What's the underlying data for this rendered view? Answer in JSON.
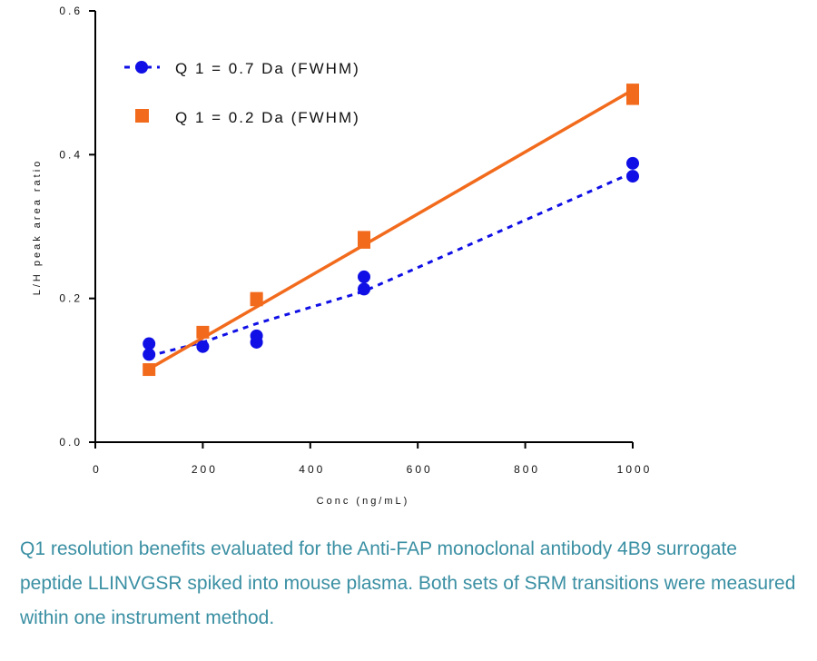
{
  "chart_data": {
    "type": "scatter",
    "xlabel": "Conc (ng/mL)",
    "ylabel": "L/H peak area ratio",
    "xlim": [
      0,
      1000
    ],
    "ylim": [
      0,
      0.6
    ],
    "x_ticks": [
      "0",
      "200",
      "400",
      "600",
      "800",
      "1000"
    ],
    "y_ticks": [
      "0.0",
      "0.2",
      "0.4",
      "0.6"
    ],
    "x_tick_values": [
      0,
      200,
      400,
      600,
      800,
      1000
    ],
    "y_tick_values": [
      0,
      0.2,
      0.4,
      0.6
    ],
    "legend_position": "top-left",
    "series": [
      {
        "name": "Q 1 = 0.7 Da (FWHM)",
        "marker": "circle",
        "color": "#1010e6",
        "fit": "dashed",
        "fit_line": [
          [
            100,
            0.12
          ],
          [
            200,
            0.139
          ],
          [
            300,
            0.165
          ],
          [
            500,
            0.21
          ],
          [
            1000,
            0.375
          ]
        ],
        "points": [
          [
            100,
            0.137
          ],
          [
            100,
            0.122
          ],
          [
            200,
            0.133
          ],
          [
            300,
            0.148
          ],
          [
            300,
            0.139
          ],
          [
            500,
            0.23
          ],
          [
            500,
            0.213
          ],
          [
            1000,
            0.388
          ],
          [
            1000,
            0.37
          ]
        ]
      },
      {
        "name": "Q 1 = 0.2 Da (FWHM)",
        "marker": "square",
        "color": "#f26b1d",
        "fit": "solid",
        "fit_line": [
          [
            100,
            0.102
          ],
          [
            1000,
            0.49
          ]
        ],
        "points": [
          [
            100,
            0.101
          ],
          [
            200,
            0.153
          ],
          [
            300,
            0.2
          ],
          [
            300,
            0.198
          ],
          [
            500,
            0.285
          ],
          [
            500,
            0.278
          ],
          [
            1000,
            0.49
          ],
          [
            1000,
            0.478
          ]
        ]
      }
    ]
  },
  "caption": "Q1 resolution benefits evaluated for the Anti-FAP monoclonal antibody 4B9 surrogate peptide LLINVGSR spiked into mouse plasma. Both sets of SRM transitions were measured within one instrument method."
}
